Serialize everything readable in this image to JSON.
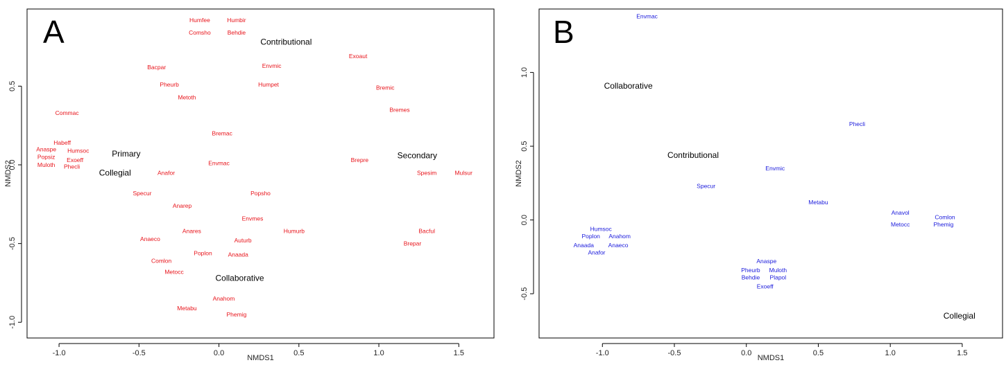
{
  "chart_data": [
    {
      "type": "scatter",
      "panel_label": "A",
      "xlabel": "NMDS1",
      "ylabel": "NMDS2",
      "xlim": [
        -1.2,
        1.72
      ],
      "ylim": [
        -1.1,
        0.99
      ],
      "xticks": [
        -1.0,
        -0.5,
        0.0,
        0.5,
        1.0,
        1.5
      ],
      "xtick_labels": [
        "-1.0",
        "-0.5",
        "0.0",
        "0.5",
        "1.0",
        "1.5"
      ],
      "yticks": [
        -1.0,
        -0.5,
        0.0,
        0.5
      ],
      "ytick_labels": [
        "-1.0",
        "-0.5",
        "0.0",
        "0.5"
      ],
      "point_color": "#e8141b",
      "group_color": "#000000",
      "points": [
        {
          "label": "Humfee",
          "x": -0.12,
          "y": 0.92
        },
        {
          "label": "Humbir",
          "x": 0.11,
          "y": 0.92
        },
        {
          "label": "Comsho",
          "x": -0.12,
          "y": 0.84
        },
        {
          "label": "Behdie",
          "x": 0.11,
          "y": 0.84
        },
        {
          "label": "Exoaut",
          "x": 0.87,
          "y": 0.69
        },
        {
          "label": "Envmic",
          "x": 0.33,
          "y": 0.63
        },
        {
          "label": "Bacpar",
          "x": -0.39,
          "y": 0.62
        },
        {
          "label": "Humpet",
          "x": 0.31,
          "y": 0.51
        },
        {
          "label": "Pheurb",
          "x": -0.31,
          "y": 0.51
        },
        {
          "label": "Bremic",
          "x": 1.04,
          "y": 0.49
        },
        {
          "label": "Metoth",
          "x": -0.2,
          "y": 0.43
        },
        {
          "label": "Bremes",
          "x": 1.13,
          "y": 0.35
        },
        {
          "label": "Commac",
          "x": -0.95,
          "y": 0.33
        },
        {
          "label": "Bremac",
          "x": 0.02,
          "y": 0.2
        },
        {
          "label": "Habeff",
          "x": -0.98,
          "y": 0.14
        },
        {
          "label": "Anaspe",
          "x": -1.08,
          "y": 0.1
        },
        {
          "label": "Humsoc",
          "x": -0.88,
          "y": 0.09
        },
        {
          "label": "Popsiz",
          "x": -1.08,
          "y": 0.05
        },
        {
          "label": "Exoeff",
          "x": -0.9,
          "y": 0.03
        },
        {
          "label": "Brepre",
          "x": 0.88,
          "y": 0.03
        },
        {
          "label": "Envmac",
          "x": 0.0,
          "y": 0.01
        },
        {
          "label": "Muloth",
          "x": -1.08,
          "y": -0.001
        },
        {
          "label": "Phecli",
          "x": -0.92,
          "y": -0.01
        },
        {
          "label": "Anafor",
          "x": -0.33,
          "y": -0.05
        },
        {
          "label": "Spesim",
          "x": 1.3,
          "y": -0.05
        },
        {
          "label": "Mulsur",
          "x": 1.53,
          "y": -0.05
        },
        {
          "label": "Specur",
          "x": -0.48,
          "y": -0.18
        },
        {
          "label": "Popsho",
          "x": 0.26,
          "y": -0.18
        },
        {
          "label": "Anarep",
          "x": -0.23,
          "y": -0.26
        },
        {
          "label": "Envmes",
          "x": 0.21,
          "y": -0.34
        },
        {
          "label": "Bacful",
          "x": 1.3,
          "y": -0.42
        },
        {
          "label": "Anares",
          "x": -0.17,
          "y": -0.42
        },
        {
          "label": "Humurb",
          "x": 0.47,
          "y": -0.42
        },
        {
          "label": "Anaeco",
          "x": -0.43,
          "y": -0.47
        },
        {
          "label": "Auturb",
          "x": 0.15,
          "y": -0.48
        },
        {
          "label": "Brepar",
          "x": 1.21,
          "y": -0.5
        },
        {
          "label": "Poplon",
          "x": -0.1,
          "y": -0.56
        },
        {
          "label": "Anaada",
          "x": 0.12,
          "y": -0.57
        },
        {
          "label": "Comlon",
          "x": -0.36,
          "y": -0.61
        },
        {
          "label": "Metocc",
          "x": -0.28,
          "y": -0.68
        },
        {
          "label": "Anahom",
          "x": 0.03,
          "y": -0.85
        },
        {
          "label": "Metabu",
          "x": -0.2,
          "y": -0.91
        },
        {
          "label": "Phemig",
          "x": 0.11,
          "y": -0.95
        }
      ],
      "groups": [
        {
          "label": "Contributional",
          "x": 0.42,
          "y": 0.78
        },
        {
          "label": "Primary",
          "x": -0.58,
          "y": 0.07
        },
        {
          "label": "Secondary",
          "x": 1.24,
          "y": 0.06
        },
        {
          "label": "Collegial",
          "x": -0.65,
          "y": -0.05
        },
        {
          "label": "Collaborative",
          "x": 0.13,
          "y": -0.72
        }
      ]
    },
    {
      "type": "scatter",
      "panel_label": "B",
      "xlabel": "NMDS1",
      "ylabel": "NMDS2",
      "xlim": [
        -1.44,
        1.78
      ],
      "ylim": [
        -0.8,
        1.43
      ],
      "xticks": [
        -1.0,
        -0.5,
        0.0,
        0.5,
        1.0,
        1.5
      ],
      "xtick_labels": [
        "-1.0",
        "-0.5",
        "0.0",
        "0.5",
        "1.0",
        "1.5"
      ],
      "yticks": [
        -0.5,
        0.0,
        0.5,
        1.0
      ],
      "ytick_labels": [
        "-0.5",
        "0.0",
        "0.5",
        "1.0"
      ],
      "point_color": "#1a1adc",
      "group_color": "#000000",
      "points": [
        {
          "label": "Envmac",
          "x": -0.69,
          "y": 1.38
        },
        {
          "label": "Phecli",
          "x": 0.77,
          "y": 0.65
        },
        {
          "label": "Envmic",
          "x": 0.2,
          "y": 0.35
        },
        {
          "label": "Specur",
          "x": -0.28,
          "y": 0.23
        },
        {
          "label": "Metabu",
          "x": 0.5,
          "y": 0.12
        },
        {
          "label": "Anavol",
          "x": 1.07,
          "y": 0.05
        },
        {
          "label": "Comlon",
          "x": 1.38,
          "y": 0.02
        },
        {
          "label": "Metocc",
          "x": 1.07,
          "y": -0.03
        },
        {
          "label": "Phemig",
          "x": 1.37,
          "y": -0.03
        },
        {
          "label": "Humsoc",
          "x": -1.01,
          "y": -0.06
        },
        {
          "label": "Poplon",
          "x": -1.08,
          "y": -0.11
        },
        {
          "label": "Anahom",
          "x": -0.88,
          "y": -0.11
        },
        {
          "label": "Anaada",
          "x": -1.13,
          "y": -0.17
        },
        {
          "label": "Anaeco",
          "x": -0.89,
          "y": -0.17
        },
        {
          "label": "Anafor",
          "x": -1.04,
          "y": -0.22
        },
        {
          "label": "Anaspe",
          "x": 0.14,
          "y": -0.28
        },
        {
          "label": "Pheurb",
          "x": 0.03,
          "y": -0.34
        },
        {
          "label": "Muloth",
          "x": 0.22,
          "y": -0.34
        },
        {
          "label": "Behdie",
          "x": 0.03,
          "y": -0.39
        },
        {
          "label": "Plapol",
          "x": 0.22,
          "y": -0.39
        },
        {
          "label": "Exoeff",
          "x": 0.13,
          "y": -0.45
        }
      ],
      "groups": [
        {
          "label": "Collaborative",
          "x": -0.82,
          "y": 0.91
        },
        {
          "label": "Contributional",
          "x": -0.37,
          "y": 0.44
        },
        {
          "label": "Collegial",
          "x": 1.48,
          "y": -0.65
        }
      ]
    }
  ]
}
